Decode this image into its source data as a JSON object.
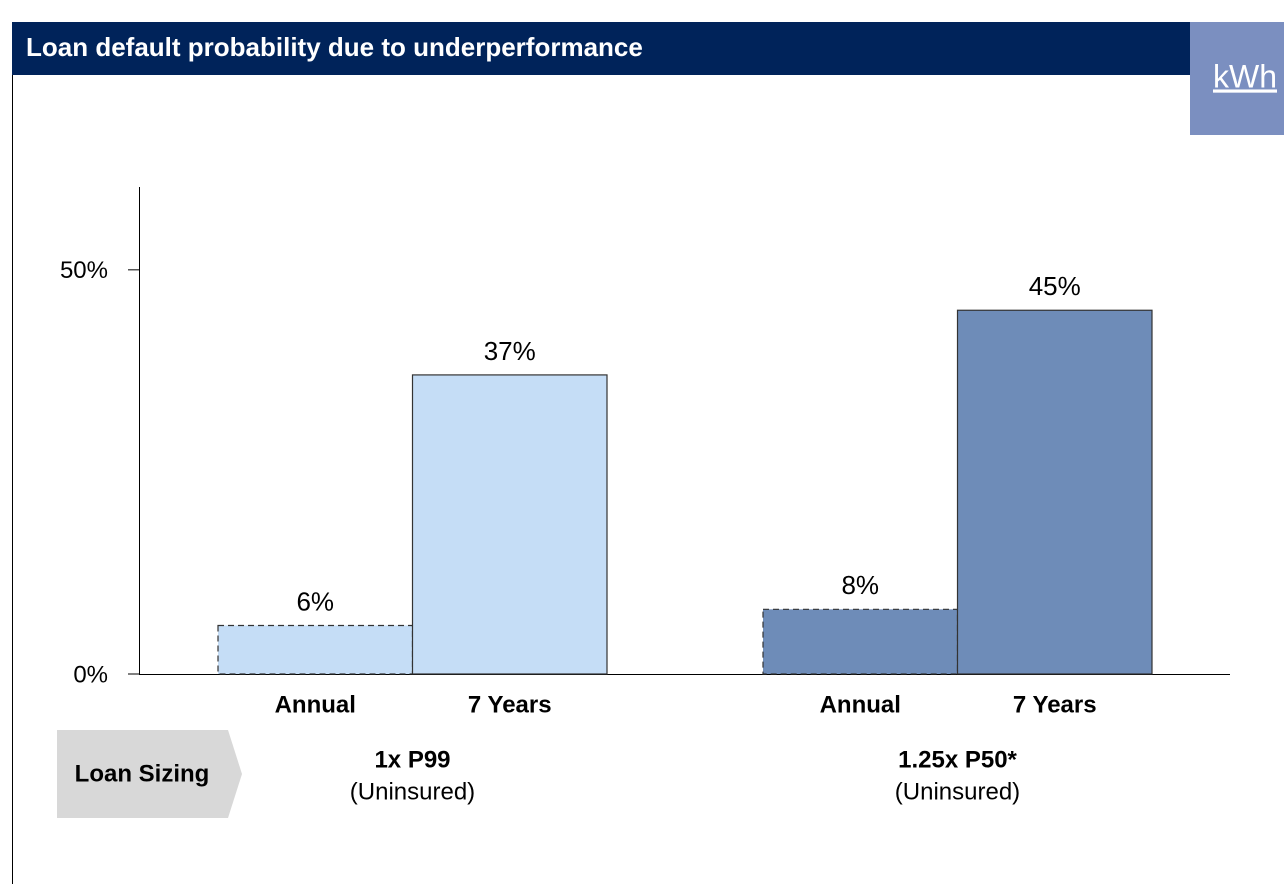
{
  "chart_data": {
    "type": "bar",
    "title": "Loan default probability due to underperformance",
    "badge": "kWh",
    "row_label": "Loan Sizing",
    "ylim": [
      0,
      60
    ],
    "yticks": [
      {
        "value": 0,
        "label": "0%"
      },
      {
        "value": 50,
        "label": "50%"
      }
    ],
    "groups": [
      {
        "label": "1x P99",
        "sublabel": "(Uninsured)",
        "color": "#c5ddf6",
        "categories": [
          "Annual",
          "7 Years"
        ],
        "values": [
          6,
          37
        ],
        "value_labels": [
          "6%",
          "37%"
        ],
        "dashed": [
          true,
          false
        ]
      },
      {
        "label": "1.25x P50*",
        "sublabel": "(Uninsured)",
        "color": "#6e8cb8",
        "categories": [
          "Annual",
          "7 Years"
        ],
        "values": [
          8,
          45
        ],
        "value_labels": [
          "8%",
          "45%"
        ],
        "dashed": [
          true,
          false
        ]
      }
    ]
  }
}
